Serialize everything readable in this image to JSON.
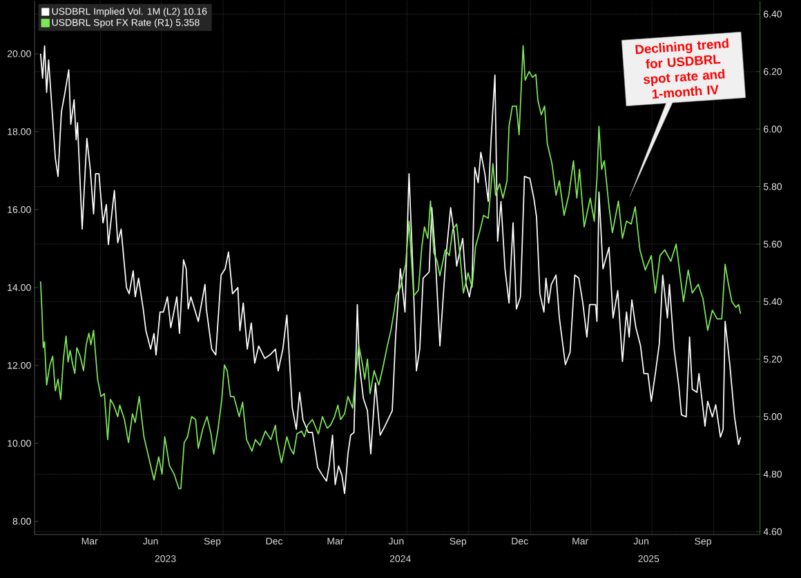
{
  "chart_data": {
    "type": "line",
    "xlim": [
      "2022-12-24",
      "2025-12-09"
    ],
    "xticks": [
      {
        "value": "2023-03-16",
        "label": "Mar"
      },
      {
        "value": "2023-04-01",
        "label": null
      },
      {
        "value": "2023-06-15",
        "label": "Jun"
      },
      {
        "value": "2023-07-01",
        "label": null
      },
      {
        "value": "2023-09-15",
        "label": "Sep"
      },
      {
        "value": "2023-10-01",
        "label": null
      },
      {
        "value": "2023-12-16",
        "label": "Dec"
      },
      {
        "value": "2024-01-01",
        "label": null
      },
      {
        "value": "2024-03-16",
        "label": "Mar"
      },
      {
        "value": "2024-04-01",
        "label": null
      },
      {
        "value": "2024-06-15",
        "label": "Jun"
      },
      {
        "value": "2024-07-01",
        "label": null
      },
      {
        "value": "2024-09-15",
        "label": "Sep"
      },
      {
        "value": "2024-10-01",
        "label": null
      },
      {
        "value": "2024-12-16",
        "label": "Dec"
      },
      {
        "value": "2025-01-01",
        "label": null
      },
      {
        "value": "2025-03-16",
        "label": "Mar"
      },
      {
        "value": "2025-04-01",
        "label": null
      },
      {
        "value": "2025-06-15",
        "label": "Jun"
      },
      {
        "value": "2025-07-01",
        "label": null
      },
      {
        "value": "2025-09-15",
        "label": "Sep"
      },
      {
        "value": "2025-10-01",
        "label": null
      }
    ],
    "x2lim": [
      "2022-12-24",
      "2025-12-09"
    ],
    "x2ticks": [
      {
        "value": "2023-07-07",
        "label": "2023"
      },
      {
        "value": "2024-01-01",
        "label": null
      },
      {
        "value": "2024-06-21",
        "label": "2024"
      },
      {
        "value": "2025-01-01",
        "label": null
      },
      {
        "value": "2025-06-26",
        "label": "2025"
      }
    ],
    "ylim": [
      7.66,
      21.35
    ],
    "yticks": [
      {
        "value": 8,
        "label": "8.00"
      },
      {
        "value": 10,
        "label": "10.00"
      },
      {
        "value": 12,
        "label": "12.00"
      },
      {
        "value": 14,
        "label": "14.00"
      },
      {
        "value": 16,
        "label": "16.00"
      },
      {
        "value": 18,
        "label": "18.00"
      },
      {
        "value": 20,
        "label": "20.00"
      }
    ],
    "y2lim": [
      4.59,
      6.445
    ],
    "y2ticks": [
      {
        "value": 4.6,
        "label": "4.60"
      },
      {
        "value": 4.8,
        "label": "4.80"
      },
      {
        "value": 5.0,
        "label": "5.00"
      },
      {
        "value": 5.2,
        "label": "5.20"
      },
      {
        "value": 5.4,
        "label": "5.40"
      },
      {
        "value": 5.6,
        "label": "5.60"
      },
      {
        "value": 5.8,
        "label": "5.80"
      },
      {
        "value": 6.0,
        "label": "6.00"
      },
      {
        "value": 6.2,
        "label": "6.20"
      },
      {
        "value": 6.4,
        "label": "6.40"
      }
    ],
    "grid": true,
    "legend": "top left",
    "annotations": [
      "Declining trend for USDBRL spot rate and 1-month IV"
    ],
    "series": [
      {
        "name": "USDBRL Implied Vol. 1M (L2) 10.16",
        "color": "#ffffff",
        "x": [
          "2023-01-02",
          "2023-01-05",
          "2023-01-08",
          "2023-01-11",
          "2023-01-14",
          "2023-01-20",
          "2023-01-24",
          "2023-01-28",
          "2023-02-02",
          "2023-02-07",
          "2023-02-13",
          "2023-02-16",
          "2023-02-21",
          "2023-02-24",
          "2023-02-26",
          "2023-03-05",
          "2023-03-12",
          "2023-03-17",
          "2023-03-22",
          "2023-03-25",
          "2023-03-30",
          "2023-04-05",
          "2023-04-10",
          "2023-04-13",
          "2023-04-22",
          "2023-04-27",
          "2023-05-02",
          "2023-05-10",
          "2023-05-14",
          "2023-05-20",
          "2023-05-23",
          "2023-05-28",
          "2023-06-04",
          "2023-06-08",
          "2023-06-15",
          "2023-06-20",
          "2023-06-23",
          "2023-06-29",
          "2023-07-04",
          "2023-07-10",
          "2023-07-15",
          "2023-07-24",
          "2023-07-28",
          "2023-08-03",
          "2023-08-07",
          "2023-08-10",
          "2023-08-14",
          "2023-08-25",
          "2023-09-04",
          "2023-09-06",
          "2023-09-14",
          "2023-09-20",
          "2023-09-28",
          "2023-10-04",
          "2023-10-09",
          "2023-10-15",
          "2023-10-23",
          "2023-10-26",
          "2023-10-31",
          "2023-11-06",
          "2023-11-12",
          "2023-11-17",
          "2023-11-23",
          "2023-12-02",
          "2023-12-11",
          "2023-12-18",
          "2023-12-22",
          "2023-12-29",
          "2024-01-04",
          "2024-01-12",
          "2024-01-18",
          "2024-01-23",
          "2024-01-28",
          "2024-02-05",
          "2024-02-11",
          "2024-02-19",
          "2024-02-26",
          "2024-03-03",
          "2024-03-07",
          "2024-03-12",
          "2024-03-16",
          "2024-03-21",
          "2024-03-26",
          "2024-03-30",
          "2024-04-04",
          "2024-04-08",
          "2024-04-13",
          "2024-04-18",
          "2024-04-21",
          "2024-04-27",
          "2024-05-03",
          "2024-05-08",
          "2024-05-15",
          "2024-05-22",
          "2024-05-29",
          "2024-06-09",
          "2024-06-14",
          "2024-06-21",
          "2024-06-28",
          "2024-07-04",
          "2024-07-09",
          "2024-07-15",
          "2024-07-20",
          "2024-07-25",
          "2024-08-03",
          "2024-08-07",
          "2024-08-12",
          "2024-08-19",
          "2024-08-28",
          "2024-09-04",
          "2024-09-09",
          "2024-09-13",
          "2024-09-22",
          "2024-09-27",
          "2024-10-02",
          "2024-10-06",
          "2024-10-10",
          "2024-10-15",
          "2024-10-19",
          "2024-10-25",
          "2024-10-30",
          "2024-11-03",
          "2024-11-09",
          "2024-11-13",
          "2024-11-18",
          "2024-11-24",
          "2024-11-30",
          "2024-12-06",
          "2024-12-11",
          "2024-12-17",
          "2024-12-23",
          "2024-12-31",
          "2025-01-06",
          "2025-01-10",
          "2025-01-15",
          "2025-01-21",
          "2025-01-24",
          "2025-01-28",
          "2025-02-01",
          "2025-02-08",
          "2025-02-13",
          "2025-02-22",
          "2025-03-01",
          "2025-03-08",
          "2025-03-14",
          "2025-03-20",
          "2025-03-26",
          "2025-03-30",
          "2025-04-08",
          "2025-04-10",
          "2025-04-13",
          "2025-04-19",
          "2025-04-28",
          "2025-05-04",
          "2025-05-11",
          "2025-05-18",
          "2025-05-24",
          "2025-05-28",
          "2025-06-01",
          "2025-06-07",
          "2025-06-14",
          "2025-06-19",
          "2025-06-25",
          "2025-06-30",
          "2025-07-06",
          "2025-07-12",
          "2025-07-17",
          "2025-07-24",
          "2025-07-27",
          "2025-08-03",
          "2025-08-10",
          "2025-08-14",
          "2025-08-21",
          "2025-08-26",
          "2025-08-30",
          "2025-09-06",
          "2025-09-09",
          "2025-09-18",
          "2025-09-22",
          "2025-09-29",
          "2025-10-04",
          "2025-10-11",
          "2025-10-15",
          "2025-10-18",
          "2025-10-25",
          "2025-11-01",
          "2025-11-07",
          "2025-11-10"
        ],
        "values": [
          20.0,
          19.37,
          20.2,
          19.01,
          19.84,
          18.34,
          17.32,
          16.85,
          18.5,
          18.97,
          19.59,
          18.19,
          18.82,
          17.79,
          18.23,
          15.5,
          17.83,
          17.04,
          15.89,
          16.92,
          16.92,
          15.66,
          16.13,
          15.1,
          16.49,
          15.15,
          15.5,
          14.0,
          13.84,
          14.43,
          13.76,
          14.24,
          13.44,
          12.89,
          12.42,
          12.82,
          12.27,
          13.37,
          13.37,
          13.76,
          12.97,
          13.76,
          12.82,
          14.71,
          14.48,
          13.45,
          13.76,
          13.13,
          14.08,
          13.45,
          12.42,
          12.27,
          14.32,
          14.48,
          14.91,
          13.84,
          14.0,
          12.89,
          13.6,
          12.42,
          13.09,
          12.06,
          12.5,
          12.18,
          12.29,
          12.42,
          11.86,
          12.42,
          13.29,
          10.92,
          10.36,
          11.31,
          10.6,
          10.28,
          10.28,
          9.38,
          9.18,
          9.03,
          9.42,
          10.21,
          8.94,
          9.42,
          9.18,
          8.71,
          9.73,
          10.21,
          10.28,
          13.56,
          12.02,
          11.15,
          10.84,
          9.73,
          11.55,
          10.21,
          10.44,
          10.84,
          12.73,
          14.48,
          13.37,
          16.92,
          14.79,
          11.86,
          12.42,
          14.24,
          14.4,
          16.05,
          14.87,
          12.5,
          14.79,
          16.05,
          15.42,
          14.55,
          15.26,
          14.08,
          13.76,
          14.16,
          17.08,
          16.69,
          17.47,
          16.92,
          16.21,
          17.72,
          19.45,
          15.19,
          16.21,
          14.48,
          13.6,
          15.66,
          13.45,
          13.76,
          16.85,
          16.8,
          16.29,
          15.81,
          13.84,
          13.37,
          14.24,
          13.6,
          14.08,
          14.32,
          13.22,
          12.02,
          12.34,
          14.32,
          14.24,
          13.6,
          12.73,
          13.56,
          13.56,
          13.13,
          16.45,
          14.48,
          15.03,
          13.22,
          13.92,
          12.1,
          13.37,
          12.73,
          13.68,
          12.97,
          12.5,
          11.79,
          11.79,
          11.08,
          11.79,
          12.57,
          14.32,
          13.22,
          14.08,
          12.42,
          11.47,
          10.73,
          10.68,
          12.73,
          11.39,
          11.31,
          11.79,
          10.44,
          11.08,
          10.68,
          10.99,
          10.16,
          10.36,
          13.13,
          12.02,
          10.68,
          9.97,
          10.16
        ]
      },
      {
        "name": "USDBRL Spot FX Rate (R1) 5.358",
        "color": "#7ee85a",
        "axis": "y2",
        "x": [
          "2023-01-02",
          "2023-01-04",
          "2023-01-06",
          "2023-01-08",
          "2023-01-11",
          "2023-01-16",
          "2023-01-20",
          "2023-01-24",
          "2023-01-28",
          "2023-02-01",
          "2023-02-05",
          "2023-02-09",
          "2023-02-12",
          "2023-02-15",
          "2023-02-19",
          "2023-02-22",
          "2023-02-25",
          "2023-03-02",
          "2023-03-07",
          "2023-03-11",
          "2023-03-15",
          "2023-03-18",
          "2023-03-22",
          "2023-03-28",
          "2023-04-02",
          "2023-04-07",
          "2023-04-12",
          "2023-04-16",
          "2023-04-21",
          "2023-04-27",
          "2023-04-30",
          "2023-05-07",
          "2023-05-13",
          "2023-05-19",
          "2023-05-23",
          "2023-05-29",
          "2023-06-05",
          "2023-06-12",
          "2023-06-20",
          "2023-06-27",
          "2023-07-02",
          "2023-07-06",
          "2023-07-13",
          "2023-07-20",
          "2023-07-27",
          "2023-07-30",
          "2023-08-04",
          "2023-08-09",
          "2023-08-15",
          "2023-08-21",
          "2023-08-25",
          "2023-09-01",
          "2023-09-07",
          "2023-09-13",
          "2023-09-17",
          "2023-09-23",
          "2023-09-29",
          "2023-10-03",
          "2023-10-07",
          "2023-10-12",
          "2023-10-17",
          "2023-10-25",
          "2023-10-30",
          "2023-11-05",
          "2023-11-13",
          "2023-11-18",
          "2023-11-25",
          "2023-12-03",
          "2023-12-11",
          "2023-12-18",
          "2023-12-20",
          "2023-12-27",
          "2024-01-04",
          "2024-01-09",
          "2024-01-14",
          "2024-01-19",
          "2024-01-26",
          "2024-01-30",
          "2024-02-04",
          "2024-02-11",
          "2024-02-20",
          "2024-02-26",
          "2024-03-04",
          "2024-03-09",
          "2024-03-15",
          "2024-03-20",
          "2024-03-24",
          "2024-03-30",
          "2024-04-04",
          "2024-04-11",
          "2024-04-15",
          "2024-04-20",
          "2024-04-25",
          "2024-04-29",
          "2024-05-03",
          "2024-05-07",
          "2024-05-13",
          "2024-05-20",
          "2024-05-26",
          "2024-06-02",
          "2024-06-07",
          "2024-06-12",
          "2024-06-15",
          "2024-06-21",
          "2024-06-29",
          "2024-07-04",
          "2024-07-11",
          "2024-07-18",
          "2024-07-23",
          "2024-07-27",
          "2024-08-01",
          "2024-08-05",
          "2024-08-10",
          "2024-08-15",
          "2024-08-19",
          "2024-08-27",
          "2024-09-02",
          "2024-09-07",
          "2024-09-13",
          "2024-09-18",
          "2024-09-23",
          "2024-09-30",
          "2024-10-06",
          "2024-10-11",
          "2024-10-18",
          "2024-10-23",
          "2024-10-30",
          "2024-11-02",
          "2024-11-06",
          "2024-11-10",
          "2024-11-16",
          "2024-11-21",
          "2024-11-27",
          "2024-11-30",
          "2024-12-05",
          "2024-12-11",
          "2024-12-15",
          "2024-12-21",
          "2024-12-24",
          "2024-12-30",
          "2025-01-04",
          "2025-01-09",
          "2025-01-12",
          "2025-01-17",
          "2025-01-22",
          "2025-01-26",
          "2025-02-02",
          "2025-02-08",
          "2025-02-13",
          "2025-02-20",
          "2025-02-27",
          "2025-03-06",
          "2025-03-11",
          "2025-03-15",
          "2025-03-22",
          "2025-03-31",
          "2025-04-06",
          "2025-04-10",
          "2025-04-13",
          "2025-04-17",
          "2025-04-21",
          "2025-04-28",
          "2025-05-03",
          "2025-05-12",
          "2025-05-18",
          "2025-05-24",
          "2025-05-31",
          "2025-06-06",
          "2025-06-13",
          "2025-06-21",
          "2025-06-30",
          "2025-07-06",
          "2025-07-13",
          "2025-07-20",
          "2025-07-29",
          "2025-08-06",
          "2025-08-17",
          "2025-08-24",
          "2025-08-30",
          "2025-09-08",
          "2025-09-15",
          "2025-09-22",
          "2025-09-29",
          "2025-10-06",
          "2025-10-13",
          "2025-10-18",
          "2025-10-23",
          "2025-10-28",
          "2025-11-03",
          "2025-11-07",
          "2025-11-10"
        ],
        "values": [
          5.47,
          5.37,
          5.24,
          5.26,
          5.11,
          5.18,
          5.21,
          5.09,
          5.13,
          5.06,
          5.2,
          5.28,
          5.19,
          5.23,
          5.18,
          5.15,
          5.24,
          5.21,
          5.16,
          5.25,
          5.29,
          5.25,
          5.3,
          5.13,
          5.07,
          5.08,
          4.92,
          5.06,
          5.04,
          5.0,
          5.04,
          4.99,
          4.91,
          5.01,
          4.98,
          5.07,
          4.93,
          4.86,
          4.78,
          4.86,
          4.8,
          4.93,
          4.83,
          4.8,
          4.75,
          4.75,
          4.91,
          4.93,
          5.0,
          4.99,
          4.89,
          4.96,
          5.0,
          4.94,
          4.87,
          4.95,
          5.06,
          5.18,
          5.16,
          5.07,
          5.07,
          5.0,
          5.05,
          4.92,
          4.88,
          4.92,
          4.9,
          4.95,
          4.92,
          4.97,
          4.92,
          4.84,
          4.93,
          4.89,
          4.87,
          4.94,
          4.95,
          4.93,
          4.97,
          4.99,
          4.94,
          5.0,
          4.96,
          4.97,
          5.0,
          5.04,
          4.99,
          5.01,
          5.07,
          5.03,
          5.13,
          5.25,
          5.19,
          5.13,
          5.2,
          5.08,
          5.16,
          5.11,
          5.17,
          5.25,
          5.3,
          5.37,
          5.42,
          5.45,
          5.53,
          5.68,
          5.42,
          5.44,
          5.59,
          5.66,
          5.62,
          5.75,
          5.57,
          5.54,
          5.49,
          5.58,
          5.56,
          5.65,
          5.67,
          5.56,
          5.43,
          5.5,
          5.45,
          5.59,
          5.65,
          5.7,
          5.69,
          5.77,
          5.88,
          5.77,
          5.81,
          5.76,
          5.82,
          6.01,
          6.08,
          6.08,
          5.98,
          6.29,
          6.17,
          6.2,
          6.18,
          6.19,
          6.1,
          6.05,
          6.08,
          5.95,
          5.88,
          5.77,
          5.82,
          5.7,
          5.77,
          5.89,
          5.76,
          5.86,
          5.66,
          5.76,
          5.68,
          5.83,
          6.01,
          5.86,
          5.89,
          5.73,
          5.64,
          5.75,
          5.62,
          5.68,
          5.67,
          5.73,
          5.58,
          5.51,
          5.56,
          5.43,
          5.56,
          5.58,
          5.54,
          5.6,
          5.4,
          5.51,
          5.43,
          5.46,
          5.41,
          5.3,
          5.37,
          5.34,
          5.34,
          5.53,
          5.46,
          5.4,
          5.38,
          5.39,
          5.358
        ]
      }
    ]
  }
}
